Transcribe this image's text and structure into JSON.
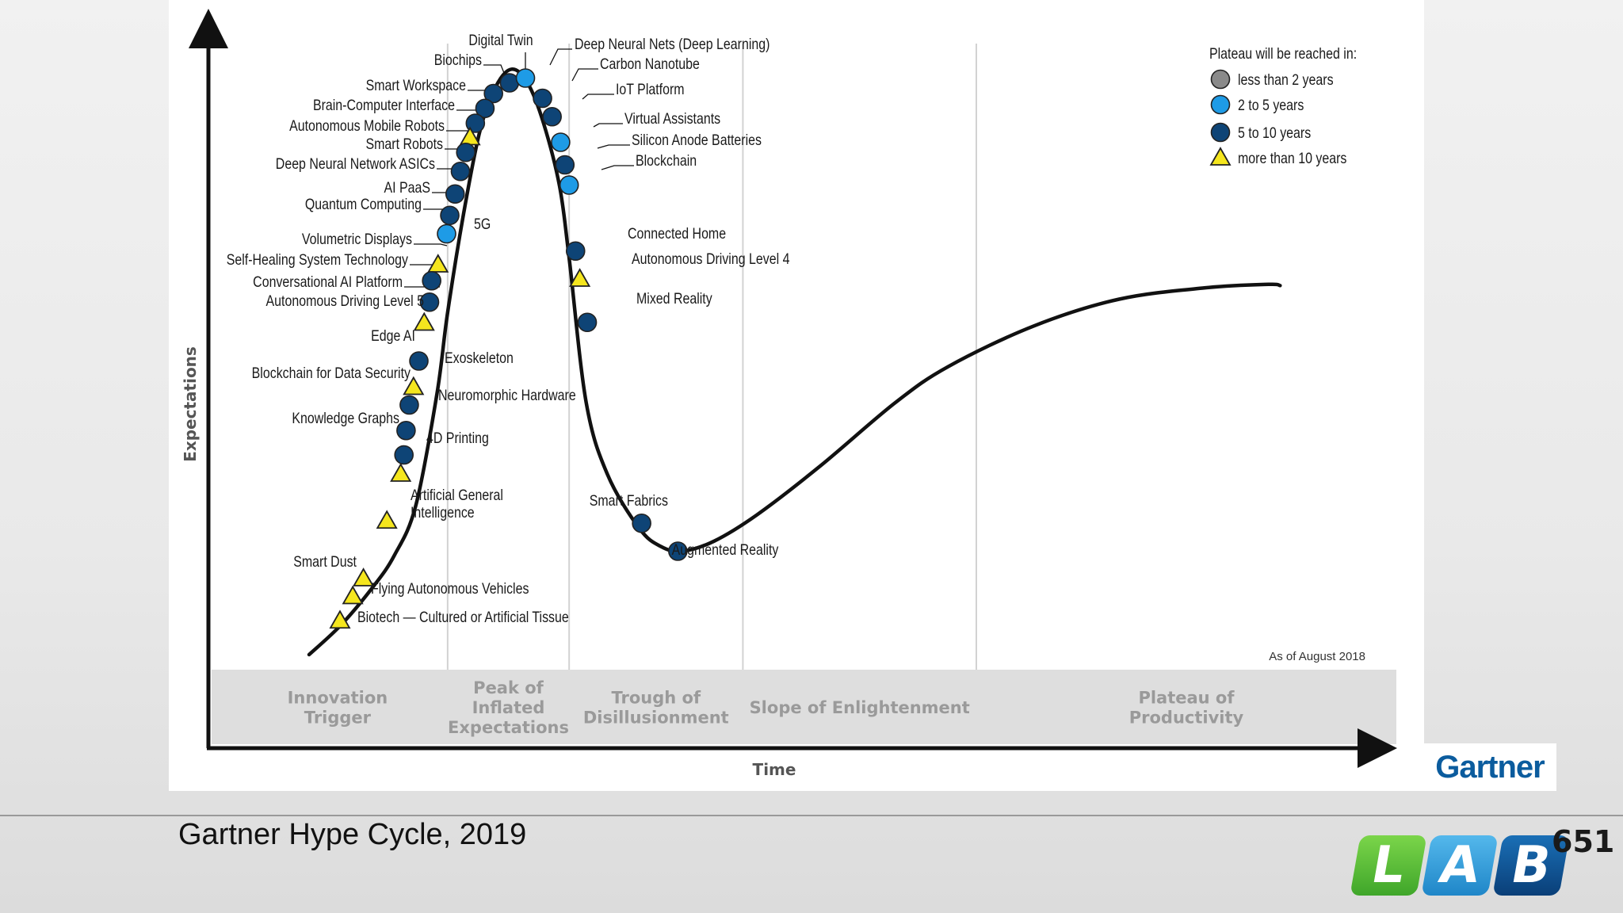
{
  "chart_data": {
    "type": "scatter",
    "title": "",
    "as_of": "As of August 2018",
    "xlabel": "Time",
    "ylabel": "Expectations",
    "xlim": [
      0,
      100
    ],
    "ylim": [
      0,
      100
    ],
    "grid": false,
    "legend_position": "top-right",
    "legend": {
      "title": "Plateau will be reached in:",
      "items": [
        {
          "key": "lt2",
          "label": "less than 2 years",
          "marker": "circle",
          "color": "#8a8a8a"
        },
        {
          "key": "2to5",
          "label": "2 to 5 years",
          "marker": "circle",
          "color": "#1e9be6"
        },
        {
          "key": "5to10",
          "label": "5 to 10 years",
          "marker": "circle",
          "color": "#0e4476"
        },
        {
          "key": "gt10",
          "label": "more than 10 years",
          "marker": "triangle",
          "color": "#f5e61e"
        }
      ]
    },
    "phases": [
      {
        "lines": [
          "Innovation",
          "Trigger"
        ]
      },
      {
        "lines": [
          "Peak of",
          "Inflated",
          "Expectations"
        ]
      },
      {
        "lines": [
          "Trough of",
          "Disillusionment"
        ]
      },
      {
        "lines": [
          "Slope of Enlightenment"
        ]
      },
      {
        "lines": [
          "Plateau of",
          "Productivity"
        ]
      }
    ],
    "phase_boundaries_x": [
      13.0,
      24.4,
      40.7,
      62.6,
      100
    ],
    "hype_curve": [
      [
        0,
        0
      ],
      [
        3,
        5
      ],
      [
        6,
        11.4
      ],
      [
        8,
        16.7
      ],
      [
        10,
        25
      ],
      [
        12,
        43.9
      ],
      [
        13,
        57.6
      ],
      [
        14.5,
        74.2
      ],
      [
        16,
        87.9
      ],
      [
        17.5,
        95.5
      ],
      [
        19,
        98.5
      ],
      [
        20.5,
        96.2
      ],
      [
        22,
        89.4
      ],
      [
        23.5,
        78.8
      ],
      [
        24.4,
        66.7
      ],
      [
        26,
        42.4
      ],
      [
        28,
        30.3
      ],
      [
        31,
        21.2
      ],
      [
        33,
        18.2
      ],
      [
        35,
        17.4
      ],
      [
        38,
        19.1
      ],
      [
        42,
        23.5
      ],
      [
        48,
        31.8
      ],
      [
        55,
        42.4
      ],
      [
        60,
        48.5
      ],
      [
        68,
        55.3
      ],
      [
        76,
        59.8
      ],
      [
        84,
        61.7
      ],
      [
        90,
        62.3
      ],
      [
        91.1,
        62.1
      ]
    ],
    "technologies": [
      {
        "name": "Digital Twin",
        "x": 18.8,
        "y": 96.2,
        "plateau": "5to10"
      },
      {
        "name": "Biochips",
        "x": 17.3,
        "y": 94.4,
        "plateau": "5to10"
      },
      {
        "name": "Deep Neural Nets (Deep Learning)",
        "x": 20.3,
        "y": 97.0,
        "plateau": "2to5"
      },
      {
        "name": "Carbon Nanotube",
        "x": 21.9,
        "y": 93.6,
        "plateau": "5to10"
      },
      {
        "name": "Smart Workspace",
        "x": 16.5,
        "y": 91.9,
        "plateau": "5to10"
      },
      {
        "name": "IoT Platform",
        "x": 22.8,
        "y": 90.5,
        "plateau": "5to10"
      },
      {
        "name": "Brain-Computer Interface",
        "x": 15.6,
        "y": 89.4,
        "plateau": "5to10"
      },
      {
        "name": "Autonomous Mobile Robots",
        "x": 15.1,
        "y": 87.0,
        "plateau": "gt10"
      },
      {
        "name": "Virtual Assistants",
        "x": 23.6,
        "y": 86.2,
        "plateau": "2to5"
      },
      {
        "name": "Smart Robots",
        "x": 14.7,
        "y": 84.5,
        "plateau": "5to10"
      },
      {
        "name": "Silicon Anode Batteries",
        "x": 24.0,
        "y": 82.4,
        "plateau": "5to10"
      },
      {
        "name": "Deep Neural Network ASICs",
        "x": 14.2,
        "y": 81.3,
        "plateau": "5to10"
      },
      {
        "name": "Blockchain",
        "x": 24.4,
        "y": 79.0,
        "plateau": "2to5"
      },
      {
        "name": "AI PaaS",
        "x": 13.7,
        "y": 77.5,
        "plateau": "5to10"
      },
      {
        "name": "Quantum Computing",
        "x": 13.2,
        "y": 73.9,
        "plateau": "5to10"
      },
      {
        "name": "5G",
        "x": 12.9,
        "y": 70.8,
        "plateau": "2to5"
      },
      {
        "name": "Connected Home",
        "x": 25.0,
        "y": 67.9,
        "plateau": "5to10"
      },
      {
        "name": "Volumetric Displays",
        "x": 12.1,
        "y": 65.6,
        "plateau": "gt10"
      },
      {
        "name": "Autonomous Driving Level 4",
        "x": 25.4,
        "y": 63.2,
        "plateau": "gt10"
      },
      {
        "name": "Self-Healing System Technology",
        "x": 11.5,
        "y": 62.9,
        "plateau": "5to10"
      },
      {
        "name": "Conversational AI Platform",
        "x": 11.3,
        "y": 59.3,
        "plateau": "5to10"
      },
      {
        "name": "Autonomous Driving Level 5",
        "x": 10.8,
        "y": 55.8,
        "plateau": "gt10"
      },
      {
        "name": "Mixed Reality",
        "x": 26.1,
        "y": 55.9,
        "plateau": "5to10"
      },
      {
        "name": "Edge AI",
        "x": 10.3,
        "y": 49.4,
        "plateau": "5to10"
      },
      {
        "name": "Exoskeleton",
        "x": 9.8,
        "y": 45.0,
        "plateau": "gt10"
      },
      {
        "name": "Blockchain for Data Security",
        "x": 9.4,
        "y": 42.0,
        "plateau": "5to10"
      },
      {
        "name": "Neuromorphic Hardware",
        "x": 9.1,
        "y": 37.7,
        "plateau": "5to10"
      },
      {
        "name": "Knowledge Graphs",
        "x": 8.9,
        "y": 33.6,
        "plateau": "5to10"
      },
      {
        "name": "4D Printing",
        "x": 8.6,
        "y": 30.4,
        "plateau": "gt10"
      },
      {
        "name": "Artificial General Intelligence",
        "x": 7.3,
        "y": 22.5,
        "plateau": "gt10"
      },
      {
        "name": "Smart Fabrics",
        "x": 31.2,
        "y": 22.1,
        "plateau": "5to10"
      },
      {
        "name": "Augmented Reality",
        "x": 34.6,
        "y": 17.4,
        "plateau": "5to10"
      },
      {
        "name": "Smart Dust",
        "x": 5.1,
        "y": 12.8,
        "plateau": "gt10"
      },
      {
        "name": "Flying Autonomous Vehicles",
        "x": 4.1,
        "y": 9.8,
        "plateau": "gt10"
      },
      {
        "name": "Biotech — Cultured or Artificial Tissue",
        "x": 2.9,
        "y": 5.7,
        "plateau": "gt10"
      }
    ]
  },
  "caption": "Gartner Hype Cycle, 2019",
  "logos": {
    "gartner": "Gartner",
    "lab_letters": [
      "L",
      "A",
      "B"
    ],
    "lab_number": "651"
  }
}
